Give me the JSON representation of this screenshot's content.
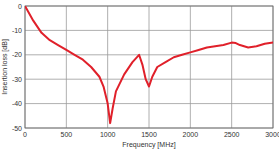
{
  "chart_data": {
    "type": "line",
    "x_label": "Frequency [MHz]",
    "y_label": "Insertion loss [dB]",
    "x": [
      0,
      100,
      200,
      300,
      400,
      500,
      600,
      700,
      800,
      900,
      950,
      1000,
      1030,
      1060,
      1100,
      1200,
      1300,
      1380,
      1420,
      1460,
      1500,
      1540,
      1600,
      1700,
      1800,
      1900,
      2000,
      2100,
      2200,
      2300,
      2400,
      2500,
      2550,
      2600,
      2700,
      2800,
      2900,
      3000
    ],
    "values": [
      0,
      -6,
      -11,
      -14,
      -16,
      -18,
      -20,
      -22,
      -25,
      -29,
      -33,
      -40,
      -48,
      -42,
      -35,
      -28,
      -23,
      -20,
      -24,
      -30,
      -33,
      -29,
      -25,
      -23,
      -21,
      -20,
      -19,
      -18,
      -17,
      -16.5,
      -16,
      -15,
      -15.2,
      -16,
      -17,
      -16.5,
      -15.5,
      -15
    ],
    "color": "#e0202a",
    "xlim": [
      0,
      3000
    ],
    "xticks": [
      0,
      500,
      1000,
      1500,
      2000,
      2500,
      3000
    ],
    "ylim": [
      -50,
      0
    ],
    "yticks": [
      0,
      -10,
      -20,
      -30,
      -40,
      -50
    ],
    "grid": true
  }
}
